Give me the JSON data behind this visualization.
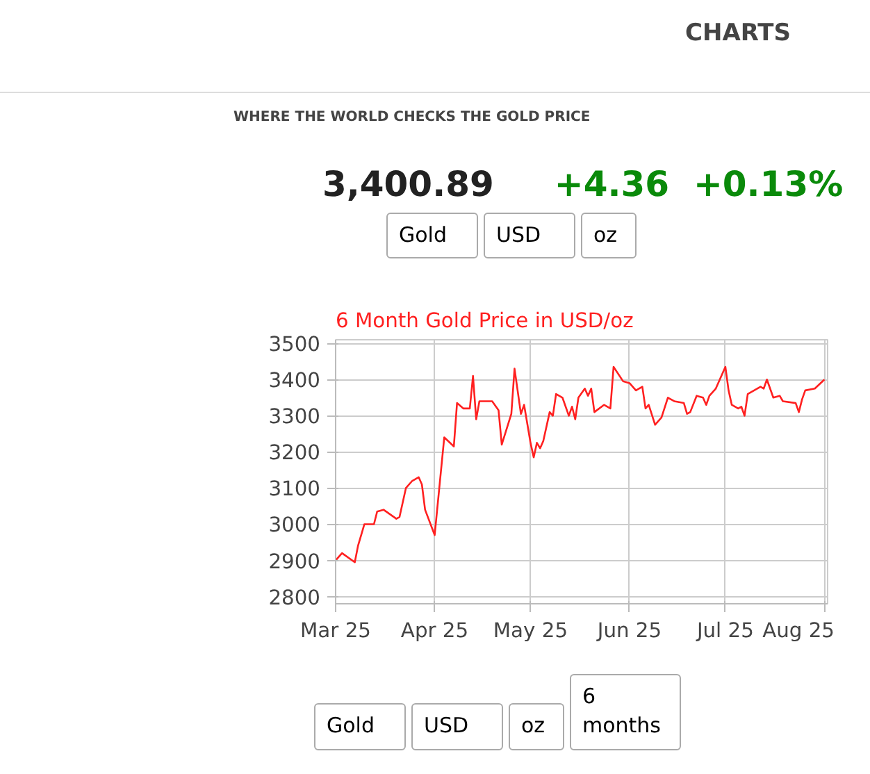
{
  "chart_data": {
    "type": "line",
    "title": "6 Month Gold Price in USD/oz",
    "x": [
      "2025-03-01",
      "2025-03-03",
      "2025-03-07",
      "2025-03-08",
      "2025-03-10",
      "2025-03-13",
      "2025-03-14",
      "2025-03-16",
      "2025-03-20",
      "2025-03-21",
      "2025-03-23",
      "2025-03-25",
      "2025-03-27",
      "2025-03-28",
      "2025-03-29",
      "2025-04-01",
      "2025-04-04",
      "2025-04-07",
      "2025-04-08",
      "2025-04-10",
      "2025-04-12",
      "2025-04-13",
      "2025-04-14",
      "2025-04-15",
      "2025-04-19",
      "2025-04-21",
      "2025-04-22",
      "2025-04-25",
      "2025-04-26",
      "2025-04-28",
      "2025-04-29",
      "2025-05-01",
      "2025-05-02",
      "2025-05-03",
      "2025-05-04",
      "2025-05-05",
      "2025-05-07",
      "2025-05-08",
      "2025-05-09",
      "2025-05-11",
      "2025-05-13",
      "2025-05-14",
      "2025-05-15",
      "2025-05-16",
      "2025-05-18",
      "2025-05-19",
      "2025-05-20",
      "2025-05-21",
      "2025-05-24",
      "2025-05-26",
      "2025-05-27",
      "2025-05-30",
      "2025-06-01",
      "2025-06-03",
      "2025-06-05",
      "2025-06-06",
      "2025-06-07",
      "2025-06-09",
      "2025-06-11",
      "2025-06-13",
      "2025-06-15",
      "2025-06-18",
      "2025-06-19",
      "2025-06-20",
      "2025-06-22",
      "2025-06-24",
      "2025-06-25",
      "2025-06-26",
      "2025-06-28",
      "2025-07-01",
      "2025-07-02",
      "2025-07-03",
      "2025-07-05",
      "2025-07-06",
      "2025-07-07",
      "2025-07-08",
      "2025-07-10",
      "2025-07-12",
      "2025-07-13",
      "2025-07-14",
      "2025-07-16",
      "2025-07-18",
      "2025-07-19",
      "2025-07-23",
      "2025-07-24",
      "2025-07-25",
      "2025-07-26",
      "2025-07-29",
      "2025-08-01"
    ],
    "series": [
      {
        "color": "#ff2020",
        "values": [
          2900,
          2920,
          2895,
          2940,
          3000,
          3000,
          3035,
          3040,
          3015,
          3020,
          3100,
          3120,
          3130,
          3110,
          3040,
          2970,
          3240,
          3215,
          3335,
          3320,
          3320,
          3410,
          3290,
          3340,
          3340,
          3315,
          3220,
          3305,
          3430,
          3305,
          3330,
          3225,
          3185,
          3225,
          3210,
          3230,
          3310,
          3300,
          3360,
          3350,
          3300,
          3325,
          3290,
          3350,
          3375,
          3355,
          3375,
          3310,
          3330,
          3320,
          3435,
          3395,
          3390,
          3370,
          3380,
          3320,
          3330,
          3275,
          3295,
          3350,
          3340,
          3335,
          3305,
          3310,
          3355,
          3350,
          3330,
          3355,
          3375,
          3435,
          3370,
          3330,
          3320,
          3325,
          3300,
          3360,
          3370,
          3380,
          3375,
          3400,
          3350,
          3355,
          3340,
          3335,
          3310,
          3345,
          3370,
          3375,
          3400
        ]
      }
    ],
    "xlim": [
      "2025-03-01",
      "2025-08-02"
    ],
    "xticks": [
      {
        "value": "2025-03-01",
        "label": "Mar 25"
      },
      {
        "value": "2025-04-01",
        "label": "Apr 25"
      },
      {
        "value": "2025-05-01",
        "label": "May 25"
      },
      {
        "value": "2025-06-01",
        "label": "Jun 25"
      },
      {
        "value": "2025-07-01",
        "label": "Jul 25"
      },
      {
        "value": "2025-08-01",
        "label": "Aug 25"
      }
    ],
    "ylim": [
      2780,
      3510
    ],
    "yticks": [
      2800,
      2900,
      3000,
      3100,
      3200,
      3300,
      3400,
      3500
    ],
    "grid": true,
    "annotations": [
      "CHARTS",
      "WHERE THE WORLD CHECKS THE GOLD PRICE",
      "3,400.89",
      "+4.36",
      "+0.13%",
      "Gold",
      "USD",
      "oz",
      "Gold",
      "USD",
      "oz",
      "6 months"
    ]
  }
}
